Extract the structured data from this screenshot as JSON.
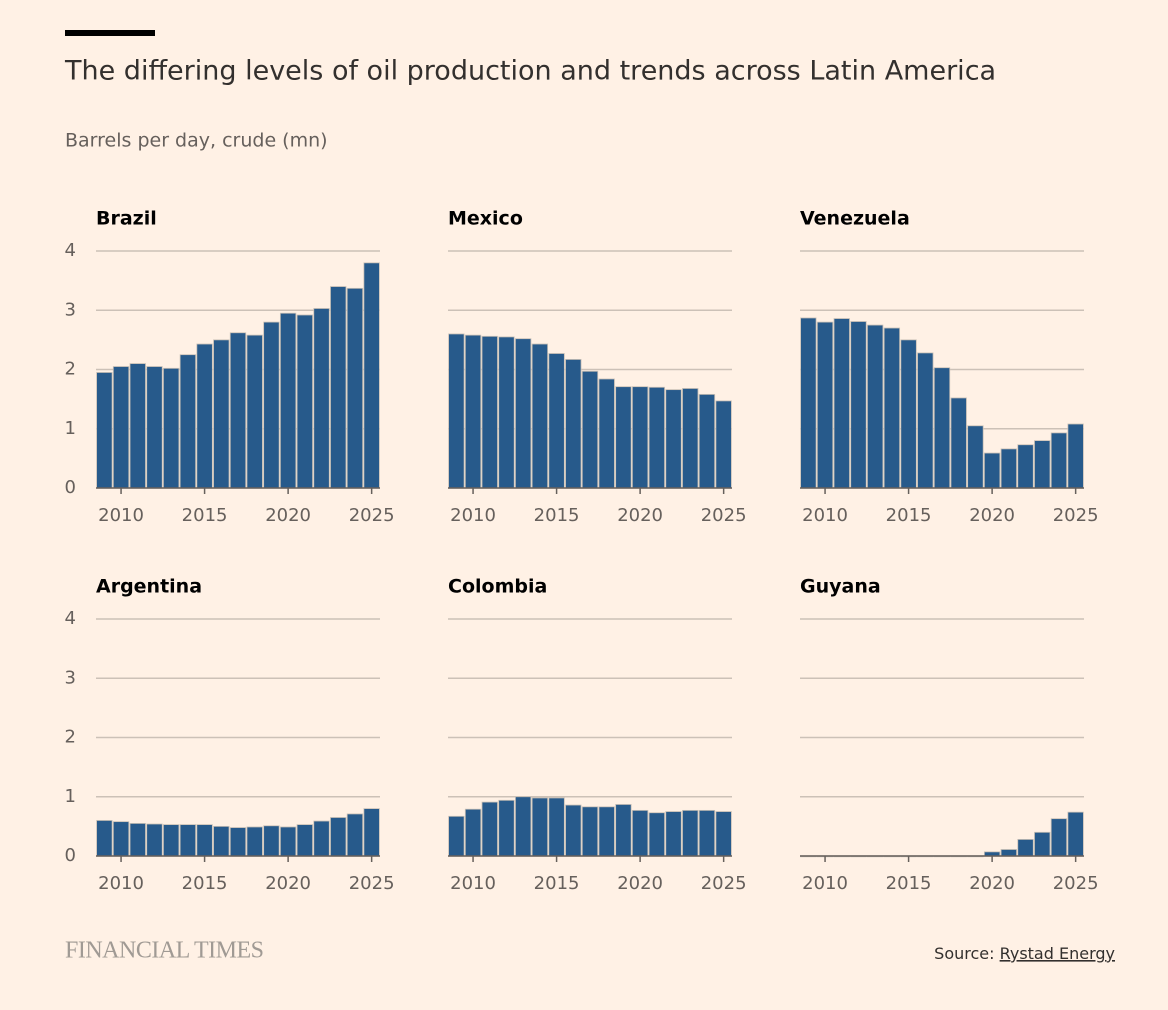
{
  "title": "The differing levels of oil production and trends across Latin America",
  "subtitle": "Barrels per day, crude (mn)",
  "brand": "FINANCIAL TIMES",
  "source_prefix": "Source:",
  "source_name": "Rystad Energy",
  "chart_data": [
    {
      "type": "bar",
      "title": "Brazil",
      "color": "#275a8b",
      "grid": true,
      "x": [
        2009,
        2010,
        2011,
        2012,
        2013,
        2014,
        2015,
        2016,
        2017,
        2018,
        2019,
        2020,
        2021,
        2022,
        2023,
        2024,
        2025
      ],
      "values": [
        1.95,
        2.05,
        2.1,
        2.05,
        2.02,
        2.25,
        2.43,
        2.5,
        2.62,
        2.58,
        2.8,
        2.95,
        2.92,
        3.03,
        3.4,
        3.37,
        3.8
      ],
      "xlim": [
        2008.5,
        2025.5
      ],
      "xticks": [
        2010,
        2015,
        2020,
        2025
      ],
      "ylim": [
        0,
        4
      ],
      "yticks": [
        0,
        1,
        2,
        3,
        4
      ]
    },
    {
      "type": "bar",
      "title": "Mexico",
      "color": "#275a8b",
      "grid": true,
      "x": [
        2009,
        2010,
        2011,
        2012,
        2013,
        2014,
        2015,
        2016,
        2017,
        2018,
        2019,
        2020,
        2021,
        2022,
        2023,
        2024,
        2025
      ],
      "values": [
        2.6,
        2.58,
        2.56,
        2.55,
        2.52,
        2.43,
        2.27,
        2.17,
        1.97,
        1.84,
        1.71,
        1.71,
        1.7,
        1.66,
        1.68,
        1.58,
        1.47
      ],
      "xlim": [
        2008.5,
        2025.5
      ],
      "xticks": [
        2010,
        2015,
        2020,
        2025
      ],
      "ylim": [
        0,
        4
      ],
      "yticks": [
        0,
        1,
        2,
        3,
        4
      ]
    },
    {
      "type": "bar",
      "title": "Venezuela",
      "color": "#275a8b",
      "grid": true,
      "x": [
        2009,
        2010,
        2011,
        2012,
        2013,
        2014,
        2015,
        2016,
        2017,
        2018,
        2019,
        2020,
        2021,
        2022,
        2023,
        2024,
        2025
      ],
      "values": [
        2.87,
        2.8,
        2.86,
        2.81,
        2.75,
        2.7,
        2.5,
        2.28,
        2.03,
        1.52,
        1.05,
        0.59,
        0.66,
        0.73,
        0.8,
        0.93,
        1.08
      ],
      "xlim": [
        2008.5,
        2025.5
      ],
      "xticks": [
        2010,
        2015,
        2020,
        2025
      ],
      "ylim": [
        0,
        4
      ],
      "yticks": [
        0,
        1,
        2,
        3,
        4
      ]
    },
    {
      "type": "bar",
      "title": "Argentina",
      "color": "#275a8b",
      "grid": true,
      "x": [
        2009,
        2010,
        2011,
        2012,
        2013,
        2014,
        2015,
        2016,
        2017,
        2018,
        2019,
        2020,
        2021,
        2022,
        2023,
        2024,
        2025
      ],
      "values": [
        0.6,
        0.58,
        0.55,
        0.54,
        0.53,
        0.53,
        0.53,
        0.5,
        0.48,
        0.49,
        0.51,
        0.49,
        0.53,
        0.59,
        0.65,
        0.71,
        0.8
      ],
      "xlim": [
        2008.5,
        2025.5
      ],
      "xticks": [
        2010,
        2015,
        2020,
        2025
      ],
      "ylim": [
        0,
        4
      ],
      "yticks": [
        0,
        1,
        2,
        3,
        4
      ]
    },
    {
      "type": "bar",
      "title": "Colombia",
      "color": "#275a8b",
      "grid": true,
      "x": [
        2009,
        2010,
        2011,
        2012,
        2013,
        2014,
        2015,
        2016,
        2017,
        2018,
        2019,
        2020,
        2021,
        2022,
        2023,
        2024,
        2025
      ],
      "values": [
        0.67,
        0.79,
        0.91,
        0.94,
        1.0,
        0.98,
        0.98,
        0.86,
        0.83,
        0.83,
        0.87,
        0.77,
        0.73,
        0.75,
        0.77,
        0.77,
        0.75
      ],
      "xlim": [
        2008.5,
        2025.5
      ],
      "xticks": [
        2010,
        2015,
        2020,
        2025
      ],
      "ylim": [
        0,
        4
      ],
      "yticks": [
        0,
        1,
        2,
        3,
        4
      ]
    },
    {
      "type": "bar",
      "title": "Guyana",
      "color": "#275a8b",
      "grid": true,
      "x": [
        2009,
        2010,
        2011,
        2012,
        2013,
        2014,
        2015,
        2016,
        2017,
        2018,
        2019,
        2020,
        2021,
        2022,
        2023,
        2024,
        2025
      ],
      "values": [
        0,
        0,
        0,
        0,
        0,
        0,
        0,
        0,
        0,
        0,
        0,
        0.07,
        0.11,
        0.28,
        0.4,
        0.63,
        0.74
      ],
      "xlim": [
        2008.5,
        2025.5
      ],
      "xticks": [
        2010,
        2015,
        2020,
        2025
      ],
      "ylim": [
        0,
        4
      ],
      "yticks": [
        0,
        1,
        2,
        3,
        4
      ]
    }
  ]
}
